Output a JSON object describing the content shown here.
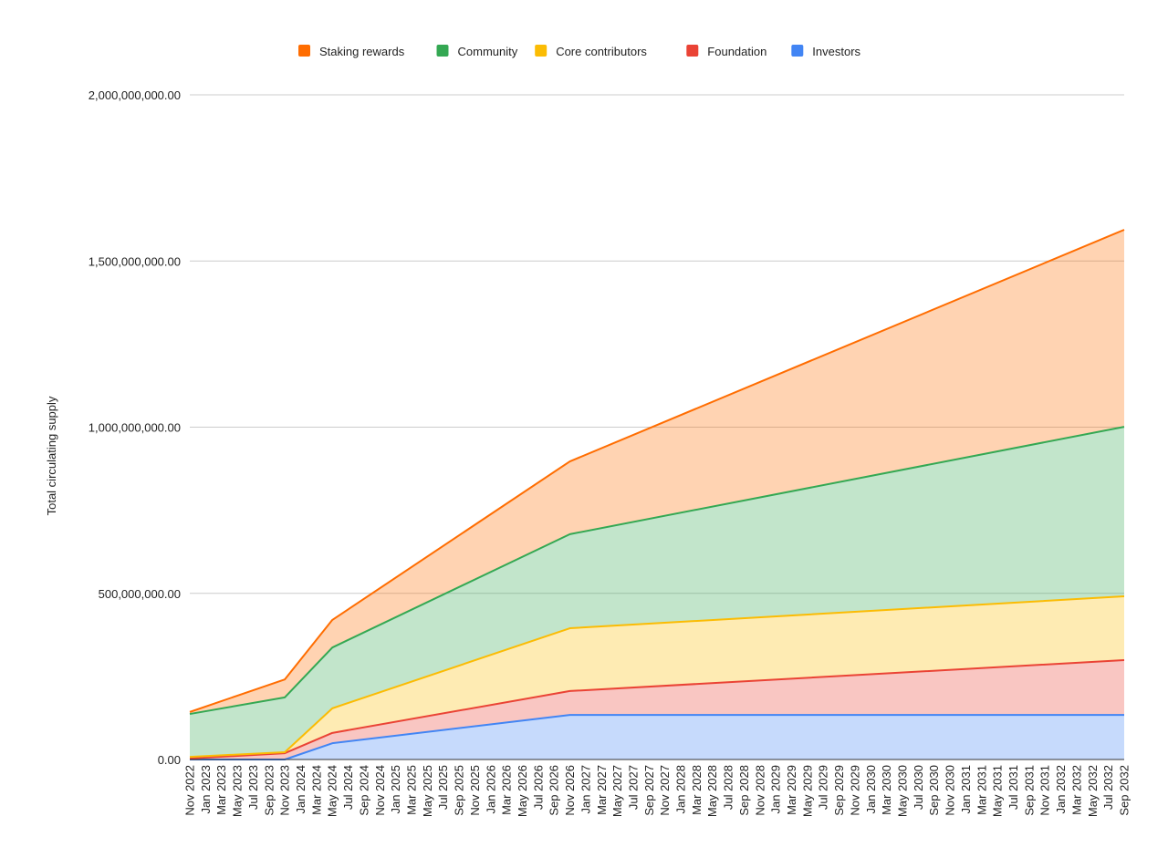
{
  "chart_data": {
    "type": "area",
    "stacked": true,
    "title": "",
    "xlabel": "",
    "ylabel": "Total circulating supply",
    "ylim": [
      0,
      2000000000
    ],
    "yticks": [
      "0.00",
      "500,000,000.00",
      "1,000,000,000.00",
      "1,500,000,000.00",
      "2,000,000,000.00"
    ],
    "ytick_values": [
      0,
      500000000,
      1000000000,
      1500000000,
      2000000000
    ],
    "grid": true,
    "legend_position": "top",
    "x_tick_labels": [
      "Nov 2022",
      "Jan 2023",
      "Mar 2023",
      "May 2023",
      "Jul 2023",
      "Sep 2023",
      "Nov 2023",
      "Jan 2024",
      "Mar 2024",
      "May 2024",
      "Jul 2024",
      "Sep 2024",
      "Nov 2024",
      "Jan 2025",
      "Mar 2025",
      "May 2025",
      "Jul 2025",
      "Sep 2025",
      "Nov 2025",
      "Jan 2026",
      "Mar 2026",
      "May 2026",
      "Jul 2026",
      "Sep 2026",
      "Nov 2026",
      "Jan 2027",
      "Mar 2027",
      "May 2027",
      "Jul 2027",
      "Sep 2027",
      "Nov 2027",
      "Jan 2028",
      "Mar 2028",
      "May 2028",
      "Jul 2028",
      "Sep 2028",
      "Nov 2028",
      "Jan 2029",
      "Mar 2029",
      "May 2029",
      "Jul 2029",
      "Sep 2029",
      "Nov 2029",
      "Jan 2030",
      "Mar 2030",
      "May 2030",
      "Jul 2030",
      "Sep 2030",
      "Nov 2030",
      "Jan 2031",
      "Mar 2031",
      "May 2031",
      "Jul 2031",
      "Sep 2031",
      "Nov 2031",
      "Jan 2032",
      "Mar 2032",
      "May 2032",
      "Jul 2032",
      "Sep 2032"
    ],
    "x": [
      "Nov 2022",
      "Nov 2023",
      "May 2024",
      "Nov 2026",
      "Sep 2032"
    ],
    "series": [
      {
        "name": "Investors",
        "color": "#4285f4",
        "values": [
          0,
          0,
          49000000,
          134000000,
          134000000
        ]
      },
      {
        "name": "Foundation",
        "color": "#ea4335",
        "values": [
          3000000,
          19000000,
          31000000,
          72000000,
          165000000
        ]
      },
      {
        "name": "Core contributors",
        "color": "#fbbc04",
        "values": [
          5000000,
          3000000,
          74000000,
          189000000,
          192000000
        ]
      },
      {
        "name": "Community",
        "color": "#34a853",
        "values": [
          129000000,
          165000000,
          183000000,
          283000000,
          510000000
        ]
      },
      {
        "name": "Staking rewards",
        "color": "#ff6d01",
        "values": [
          6000000,
          54000000,
          83000000,
          219000000,
          593000000
        ]
      }
    ],
    "legend_order": [
      "Staking rewards",
      "Community",
      "Core contributors",
      "Foundation",
      "Investors"
    ]
  }
}
